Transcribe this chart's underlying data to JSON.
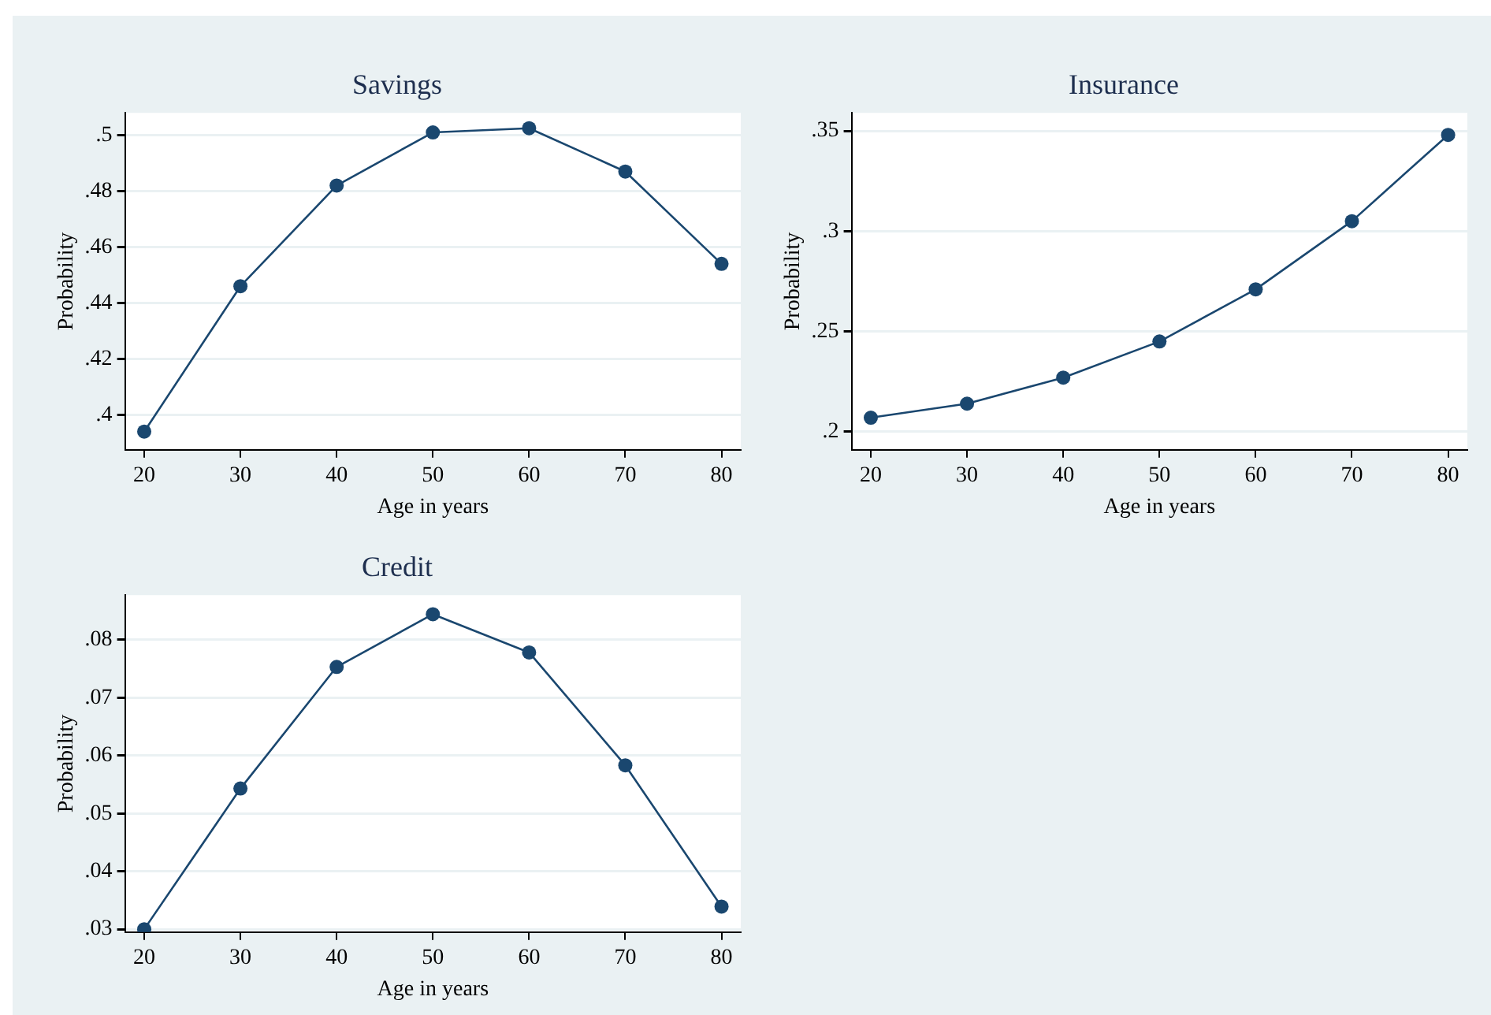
{
  "chart_data": [
    {
      "type": "line",
      "title": "Savings",
      "xlabel": "Age in years",
      "ylabel": "Probability",
      "x": [
        20,
        30,
        40,
        50,
        60,
        70,
        80
      ],
      "series": [
        {
          "color": "#1a476f",
          "values": [
            0.394,
            0.446,
            0.482,
            0.501,
            0.5025,
            0.487,
            0.454
          ]
        }
      ],
      "xlim": [
        18,
        82
      ],
      "xticks": [
        20,
        30,
        40,
        50,
        60,
        70,
        80
      ],
      "ylim": [
        0.3875,
        0.508
      ],
      "yticks": [
        {
          "value": 0.4,
          "label": ".4"
        },
        {
          "value": 0.42,
          "label": ".42"
        },
        {
          "value": 0.44,
          "label": ".44"
        },
        {
          "value": 0.46,
          "label": ".46"
        },
        {
          "value": 0.48,
          "label": ".48"
        },
        {
          "value": 0.5,
          "label": ".5"
        }
      ],
      "grid": "y",
      "marker": "circle",
      "line_style": "solid"
    },
    {
      "type": "line",
      "title": "Insurance",
      "xlabel": "Age in years",
      "ylabel": "Probability",
      "x": [
        20,
        30,
        40,
        50,
        60,
        70,
        80
      ],
      "series": [
        {
          "color": "#1a476f",
          "values": [
            0.207,
            0.214,
            0.227,
            0.245,
            0.271,
            0.305,
            0.348
          ]
        }
      ],
      "xlim": [
        18,
        82
      ],
      "xticks": [
        20,
        30,
        40,
        50,
        60,
        70,
        80
      ],
      "ylim": [
        0.191,
        0.359
      ],
      "yticks": [
        {
          "value": 0.2,
          "label": ".2"
        },
        {
          "value": 0.25,
          "label": ".25"
        },
        {
          "value": 0.3,
          "label": ".3"
        },
        {
          "value": 0.35,
          "label": ".35"
        }
      ],
      "grid": "y",
      "marker": "circle",
      "line_style": "solid"
    },
    {
      "type": "line",
      "title": "Credit",
      "xlabel": "Age in years",
      "ylabel": "Probability",
      "x": [
        20,
        30,
        40,
        50,
        60,
        70,
        80
      ],
      "series": [
        {
          "color": "#1a476f",
          "values": [
            0.03,
            0.0543,
            0.0753,
            0.0844,
            0.0778,
            0.0583,
            0.0339
          ]
        }
      ],
      "xlim": [
        18,
        82
      ],
      "xticks": [
        20,
        30,
        40,
        50,
        60,
        70,
        80
      ],
      "ylim": [
        0.0295,
        0.0877
      ],
      "yticks": [
        {
          "value": 0.03,
          "label": ".03"
        },
        {
          "value": 0.04,
          "label": ".04"
        },
        {
          "value": 0.05,
          "label": ".05"
        },
        {
          "value": 0.06,
          "label": ".06"
        },
        {
          "value": 0.07,
          "label": ".07"
        },
        {
          "value": 0.08,
          "label": ".08"
        }
      ],
      "grid": "y",
      "marker": "circle",
      "line_style": "solid"
    }
  ]
}
